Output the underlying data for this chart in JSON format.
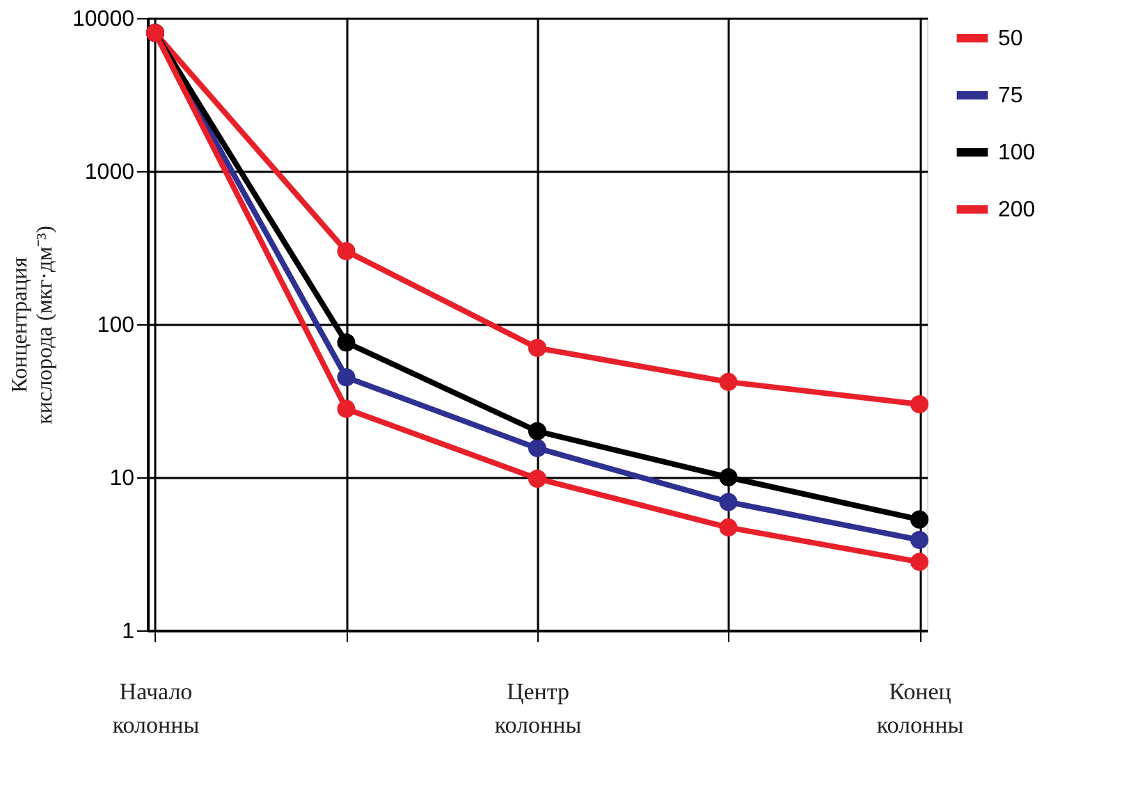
{
  "chart_data": {
    "type": "line",
    "ylabel": "Концентрация кислорода (мкг·дм⁻³)",
    "categories": [
      "Начало колонны",
      null,
      "Центр колонны",
      null,
      "Конец колонны"
    ],
    "ylim": [
      1,
      10000
    ],
    "yticks": [
      1,
      10,
      100,
      1000,
      10000
    ],
    "log": "y",
    "grid": true,
    "legend": "right",
    "marker": "circle",
    "line_style": "solid",
    "series": [
      {
        "name": "50",
        "color": "#e8202a",
        "values": [
          8000,
          300,
          70,
          42,
          30
        ]
      },
      {
        "name": "75",
        "color": "#2e3192",
        "values": [
          8000,
          45,
          15.5,
          6.9,
          3.9
        ]
      },
      {
        "name": "100",
        "color": "#000000",
        "values": [
          8000,
          76,
          20,
          10,
          5.3
        ]
      },
      {
        "name": "200",
        "color": "#e8202a",
        "values": [
          8000,
          28,
          9.8,
          4.7,
          2.8
        ]
      }
    ]
  }
}
